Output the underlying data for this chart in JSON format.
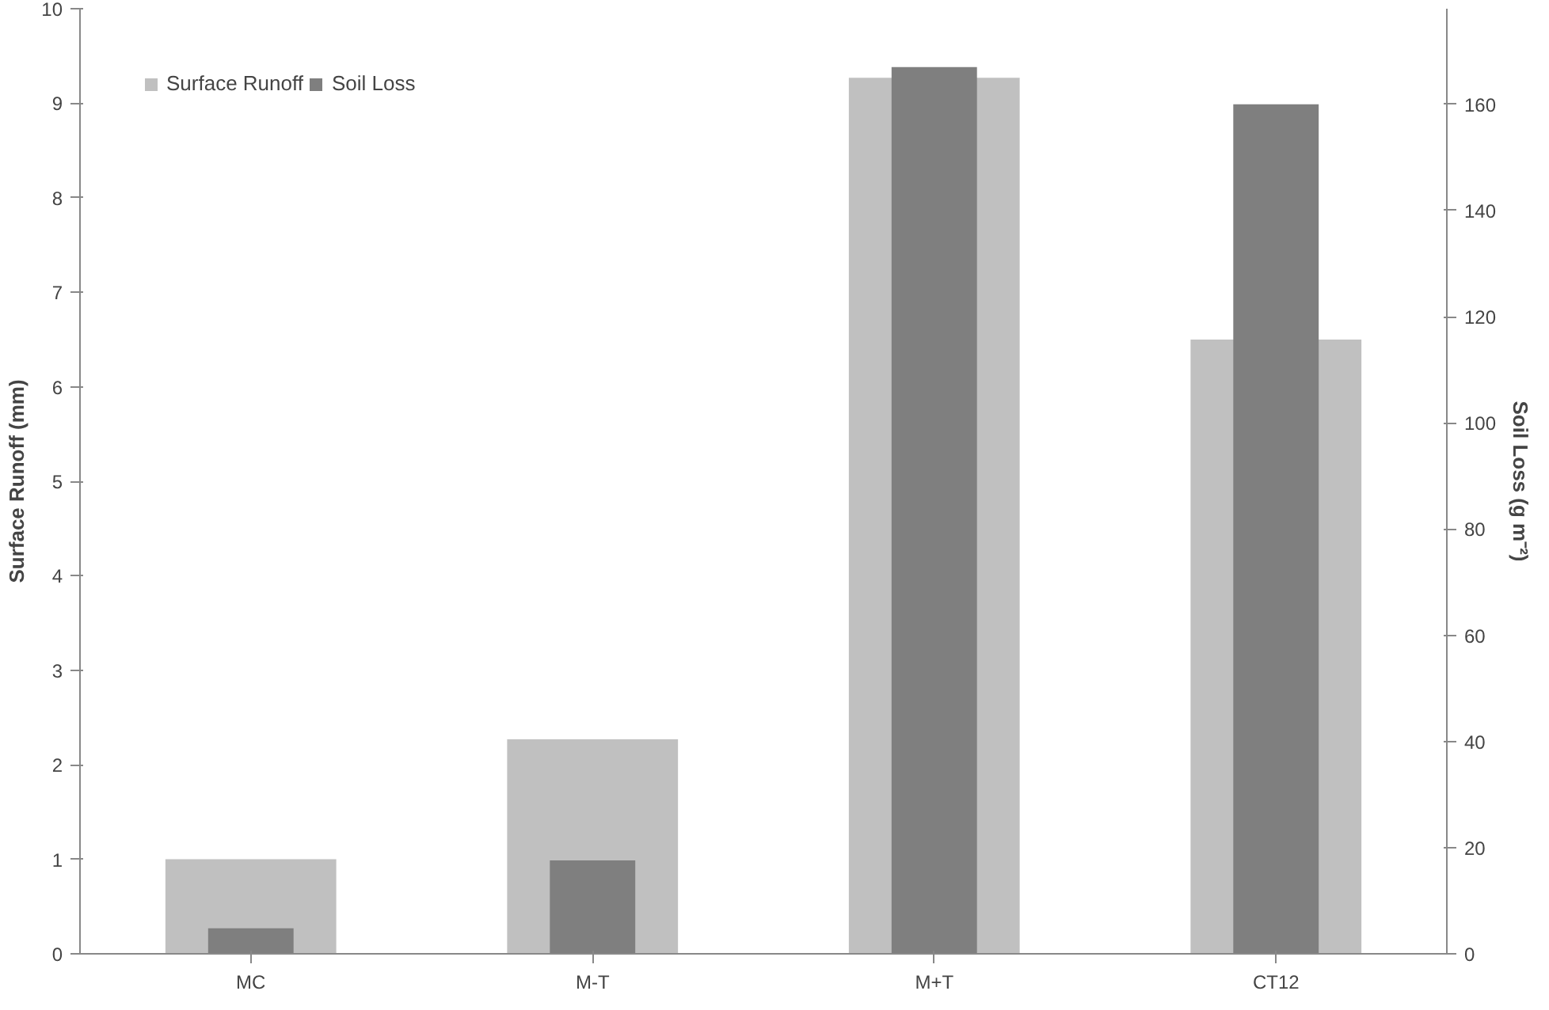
{
  "chart_data": {
    "type": "bar",
    "ylabel": "Surface Runoff (mm)",
    "y2label": "Soil Loss (g m⁻²)",
    "categories": [
      "MC",
      "M-T",
      "M+T",
      "CT12"
    ],
    "series": [
      {
        "name": "Surface Runoff",
        "color": "#c0c0c0",
        "values": [
          1.0,
          2.27,
          9.27,
          6.5
        ]
      },
      {
        "name": "Soil Loss",
        "color": "#7f7f7f",
        "values": [
          4.8,
          17.6,
          167,
          160
        ],
        "axis": "y2"
      }
    ],
    "ylim": [
      0,
      10
    ],
    "yticks": [
      0,
      1,
      2,
      3,
      4,
      5,
      6,
      7,
      8,
      9,
      10
    ],
    "y2lim": [
      0,
      178
    ],
    "y2ticks": [
      0,
      20,
      40,
      60,
      80,
      100,
      120,
      140,
      160
    ],
    "grid": false,
    "legend": "top left"
  }
}
